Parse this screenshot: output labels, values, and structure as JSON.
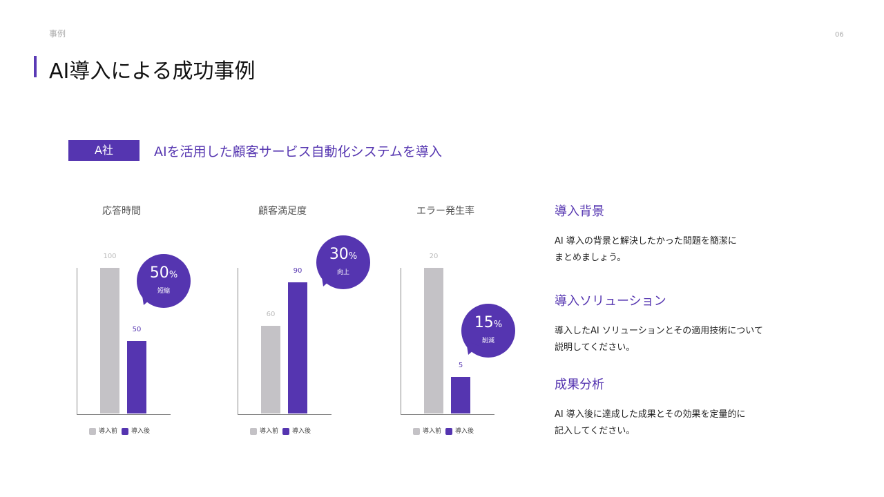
{
  "header": {
    "crumb": "事例",
    "page_number": "06",
    "title": "AI導入による成功事例"
  },
  "case": {
    "company": "A社",
    "subtitle": "AIを活用した顧客サービス自動化システムを導入"
  },
  "colors": {
    "before": "#c4c2c6",
    "after": "#5535b0"
  },
  "legend": {
    "before": "導入前",
    "after": "導入後"
  },
  "chart_data": [
    {
      "type": "bar",
      "title": "応答時間",
      "categories": [
        "導入前",
        "導入後"
      ],
      "values": [
        100,
        50
      ],
      "ylim": [
        0,
        100
      ],
      "callout": {
        "value": "50",
        "unit": "%",
        "label": "短縮"
      }
    },
    {
      "type": "bar",
      "title": "顧客満足度",
      "categories": [
        "導入前",
        "導入後"
      ],
      "values": [
        60,
        90
      ],
      "ylim": [
        0,
        100
      ],
      "callout": {
        "value": "30",
        "unit": "%",
        "label": "向上"
      }
    },
    {
      "type": "bar",
      "title": "エラー発生率",
      "categories": [
        "導入前",
        "導入後"
      ],
      "values": [
        20,
        5
      ],
      "ylim": [
        0,
        20
      ],
      "callout": {
        "value": "15",
        "unit": "%",
        "label": "削減"
      }
    }
  ],
  "sections": [
    {
      "heading": "導入背景",
      "lines": [
        "AI 導入の背景と解決したかった問題を簡潔に",
        "まとめましょう。"
      ]
    },
    {
      "heading": "導入ソリューション",
      "lines": [
        "導入したAI ソリューションとその適用技術について",
        "説明してください。"
      ]
    },
    {
      "heading": "成果分析",
      "lines": [
        "AI 導入後に達成した成果とその効果を定量的に",
        "記入してください。"
      ]
    }
  ]
}
